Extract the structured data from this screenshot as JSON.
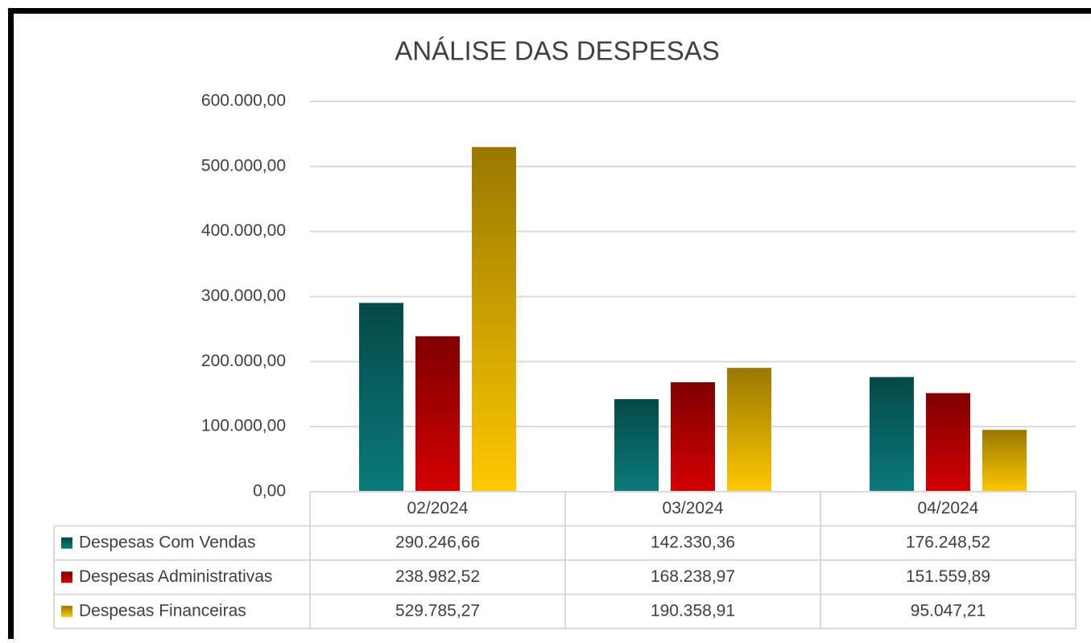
{
  "chart_data": {
    "type": "bar",
    "title": "ANÁLISE DAS DESPESAS",
    "categories": [
      "02/2024",
      "03/2024",
      "04/2024"
    ],
    "series": [
      {
        "name": "Despesas Com Vendas",
        "color": "#0a7a7a",
        "values": [
          290246.66,
          142330.36,
          176248.52
        ],
        "value_labels": [
          "290.246,66",
          "142.330,36",
          "176.248,52"
        ]
      },
      {
        "name": "Despesas Administrativas",
        "color": "#d40000",
        "values": [
          238982.52,
          168238.97,
          151559.89
        ],
        "value_labels": [
          "238.982,52",
          "168.238,97",
          "151.559,89"
        ]
      },
      {
        "name": "Despesas Financeiras",
        "color": "#ffc800",
        "values": [
          529785.27,
          190358.91,
          95047.21
        ],
        "value_labels": [
          "529.785,27",
          "190.358,91",
          "95.047,21"
        ]
      }
    ],
    "ylim": [
      0,
      600000
    ],
    "yticks": [
      {
        "value": 0,
        "label": "0,00"
      },
      {
        "value": 100000,
        "label": "100.000,00"
      },
      {
        "value": 200000,
        "label": "200.000,00"
      },
      {
        "value": 300000,
        "label": "300.000,00"
      },
      {
        "value": 400000,
        "label": "400.000,00"
      },
      {
        "value": 500000,
        "label": "500.000,00"
      },
      {
        "value": 600000,
        "label": "600.000,00"
      }
    ],
    "grid": true
  }
}
